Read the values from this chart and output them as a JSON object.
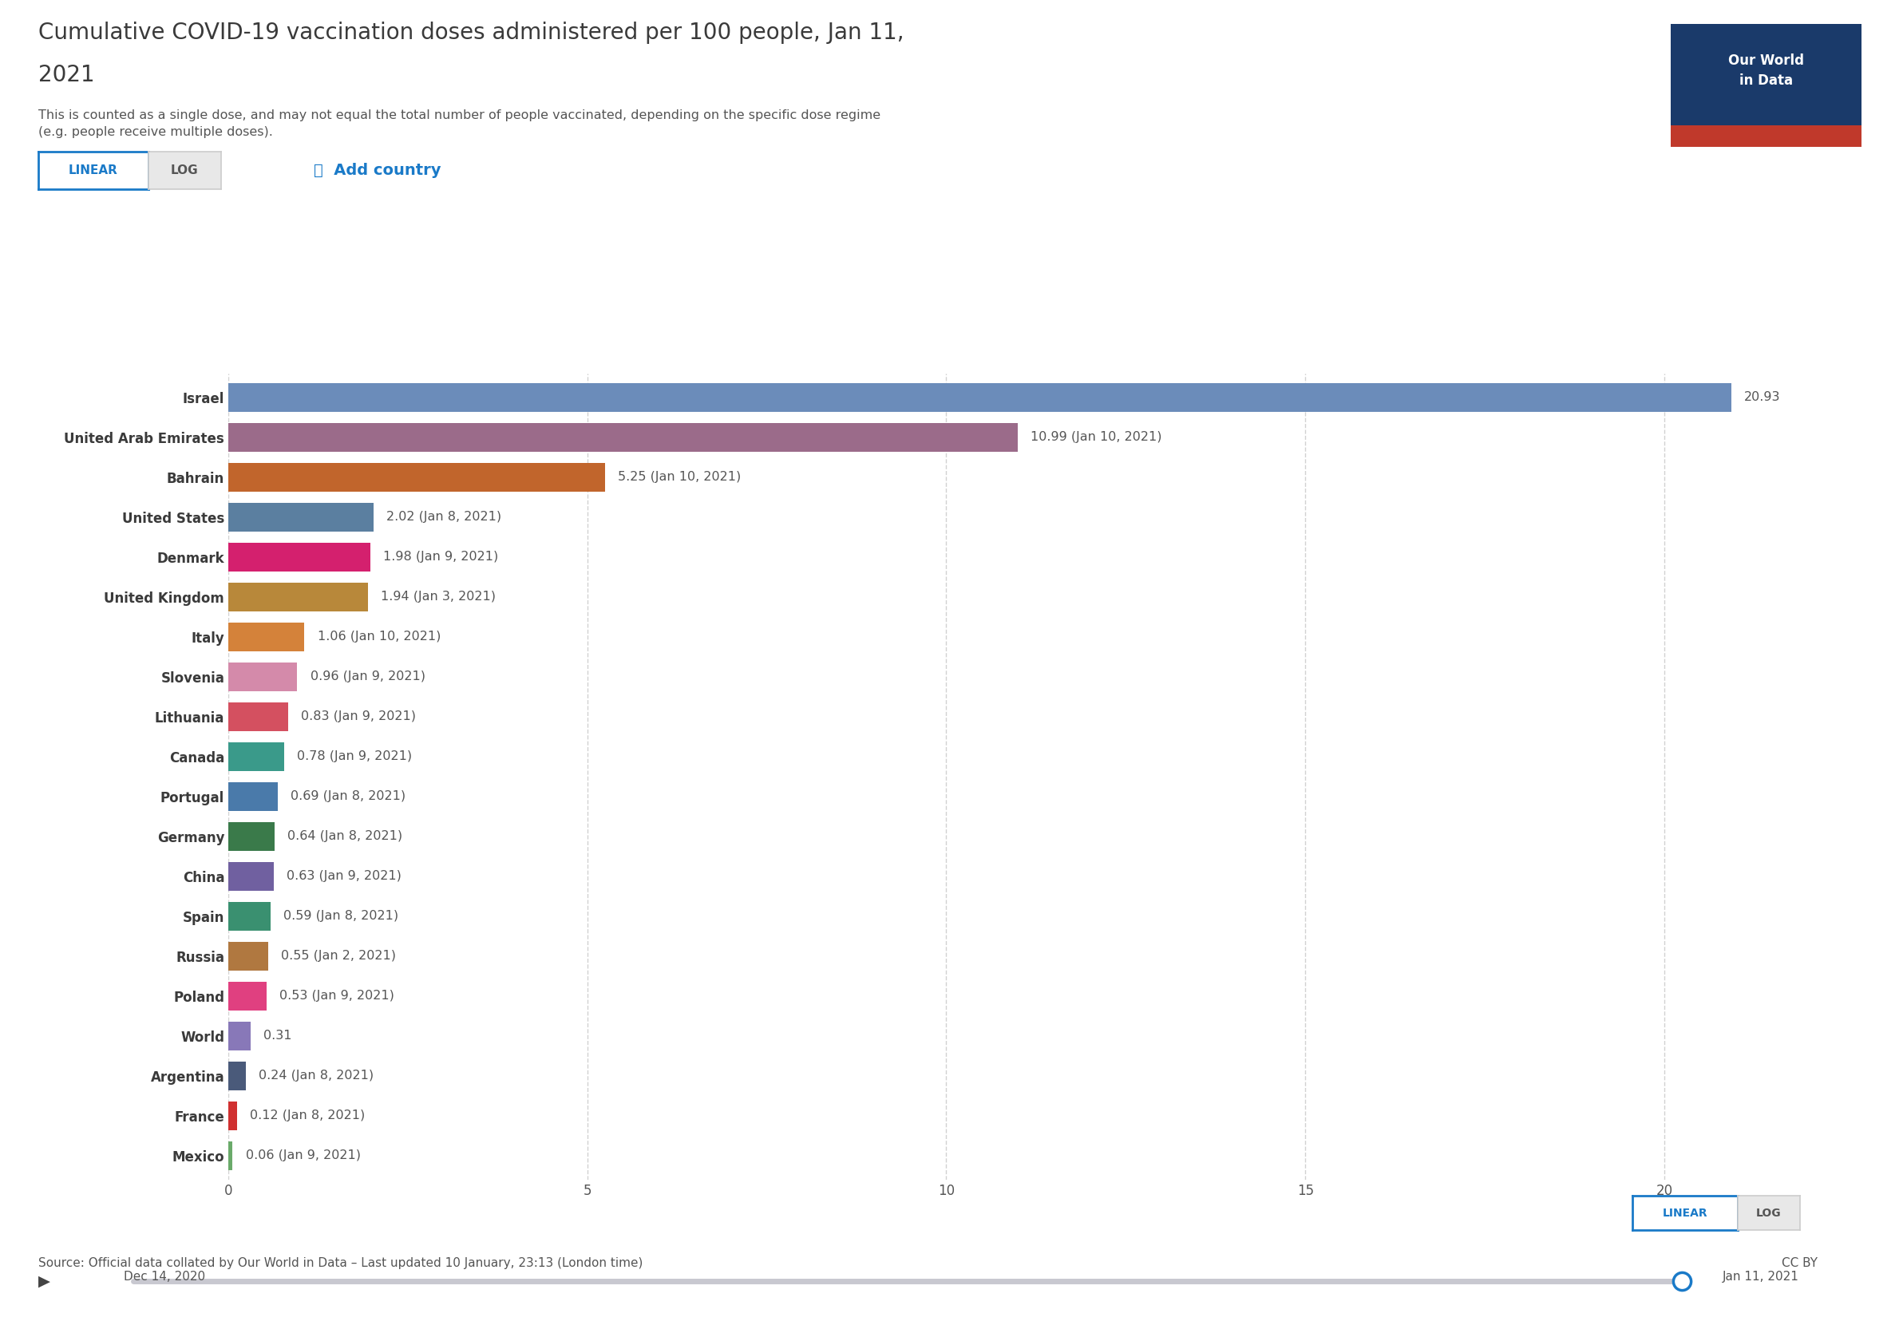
{
  "title_line1": "Cumulative COVID-19 vaccination doses administered per 100 people, Jan 11,",
  "title_line2": "2021",
  "subtitle": "This is counted as a single dose, and may not equal the total number of people vaccinated, depending on the specific dose regime\n(e.g. people receive multiple doses).",
  "countries": [
    "Israel",
    "United Arab Emirates",
    "Bahrain",
    "United States",
    "Denmark",
    "United Kingdom",
    "Italy",
    "Slovenia",
    "Lithuania",
    "Canada",
    "Portugal",
    "Germany",
    "China",
    "Spain",
    "Russia",
    "Poland",
    "World",
    "Argentina",
    "France",
    "Mexico"
  ],
  "values": [
    20.93,
    10.99,
    5.25,
    2.02,
    1.98,
    1.94,
    1.06,
    0.96,
    0.83,
    0.78,
    0.69,
    0.64,
    0.63,
    0.59,
    0.55,
    0.53,
    0.31,
    0.24,
    0.12,
    0.06
  ],
  "labels": [
    "20.93",
    "10.99 (Jan 10, 2021)",
    "5.25 (Jan 10, 2021)",
    "2.02 (Jan 8, 2021)",
    "1.98 (Jan 9, 2021)",
    "1.94 (Jan 3, 2021)",
    "1.06 (Jan 10, 2021)",
    "0.96 (Jan 9, 2021)",
    "0.83 (Jan 9, 2021)",
    "0.78 (Jan 9, 2021)",
    "0.69 (Jan 8, 2021)",
    "0.64 (Jan 8, 2021)",
    "0.63 (Jan 9, 2021)",
    "0.59 (Jan 8, 2021)",
    "0.55 (Jan 2, 2021)",
    "0.53 (Jan 9, 2021)",
    "0.31",
    "0.24 (Jan 8, 2021)",
    "0.12 (Jan 8, 2021)",
    "0.06 (Jan 9, 2021)"
  ],
  "colors": [
    "#6b8cba",
    "#9b6b8a",
    "#c1652c",
    "#5b7fa0",
    "#d4206e",
    "#b8883a",
    "#d4823a",
    "#d48aaa",
    "#d45060",
    "#3a9a8a",
    "#4a7aaa",
    "#3a7a4a",
    "#7060a0",
    "#3a9070",
    "#b07840",
    "#e04080",
    "#8878b8",
    "#4a5a7a",
    "#d03030",
    "#6aaa6a"
  ],
  "xlim": [
    0,
    22
  ],
  "xticks": [
    0,
    5,
    10,
    15,
    20
  ],
  "bg_color": "#ffffff",
  "text_color": "#3a3a3a",
  "label_color": "#555555",
  "source_text": "Source: Official data collated by Our World in Data – Last updated 10 January, 23:13 (London time)",
  "footer_right": "CC BY",
  "owid_box_bg": "#1a3a6a",
  "owid_box_red": "#c0392b",
  "owid_text": "Our World\nin Data",
  "date_start": "Dec 14, 2020",
  "date_end": "Jan 11, 2021",
  "btn_blue": "#1a7ac8",
  "btn_bg_selected": "#ffffff",
  "btn_bg_unselected": "#e8e8e8",
  "btn_border_unselected": "#cccccc",
  "grid_color": "#cccccc",
  "slider_color": "#c8c8d0",
  "slider_handle_color": "#1a7ac8"
}
